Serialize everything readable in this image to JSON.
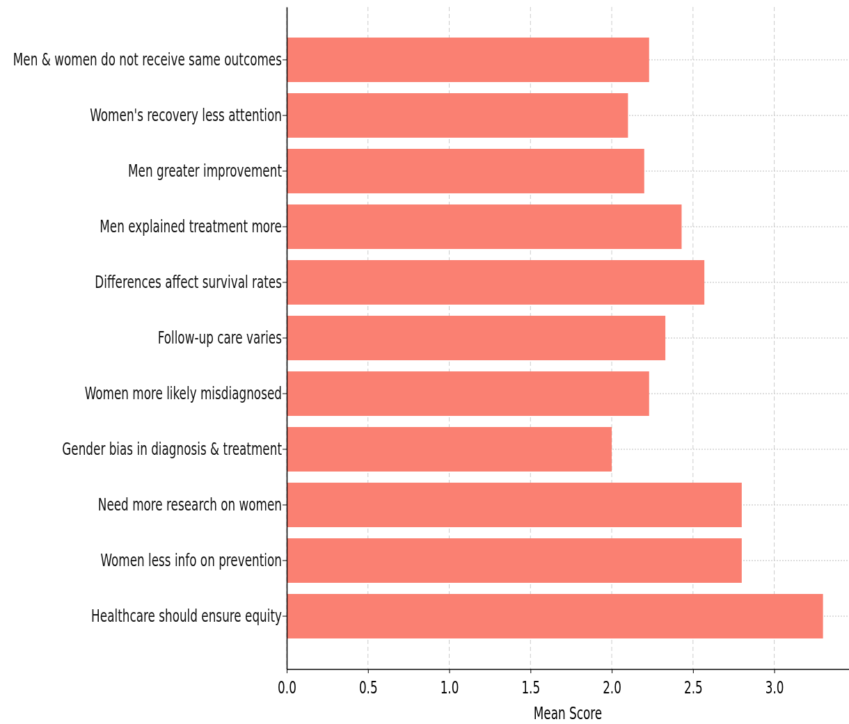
{
  "chart_data": {
    "type": "bar",
    "orientation": "horizontal",
    "xlabel": "Mean Score",
    "categories": [
      "Men & women do not receive same outcomes",
      "Women's recovery less attention",
      "Men greater improvement",
      "Men explained treatment more",
      "Differences affect survival rates",
      "Follow-up care varies",
      "Women more likely misdiagnosed",
      "Gender bias in diagnosis & treatment",
      "Need more research on women",
      "Women less info on prevention",
      "Healthcare should ensure equity"
    ],
    "values": [
      2.23,
      2.1,
      2.2,
      2.43,
      2.57,
      2.33,
      2.23,
      2.0,
      2.8,
      2.8,
      3.3
    ],
    "color": "#fa8072",
    "xlim": [
      0,
      3.46
    ],
    "xticks": [
      {
        "value": 0,
        "label": "0.0"
      },
      0.5,
      {
        "value": 1,
        "label": "1.0"
      },
      1.5,
      {
        "value": 2,
        "label": "2.0"
      },
      2.5,
      {
        "value": 3,
        "label": "3.0"
      }
    ],
    "grid": true
  }
}
